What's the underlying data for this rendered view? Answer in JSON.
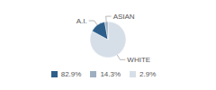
{
  "chart_data": {
    "type": "pie",
    "categories": [
      "WHITE",
      "A.I.",
      "ASIAN"
    ],
    "values": [
      82.9,
      14.3,
      2.9
    ],
    "value_labels": [
      "82.9%",
      "14.3%",
      "2.9%"
    ],
    "colors": [
      "#d6dfe8",
      "#2e5f8a",
      "#9dafc0"
    ],
    "legend": "bottom"
  }
}
